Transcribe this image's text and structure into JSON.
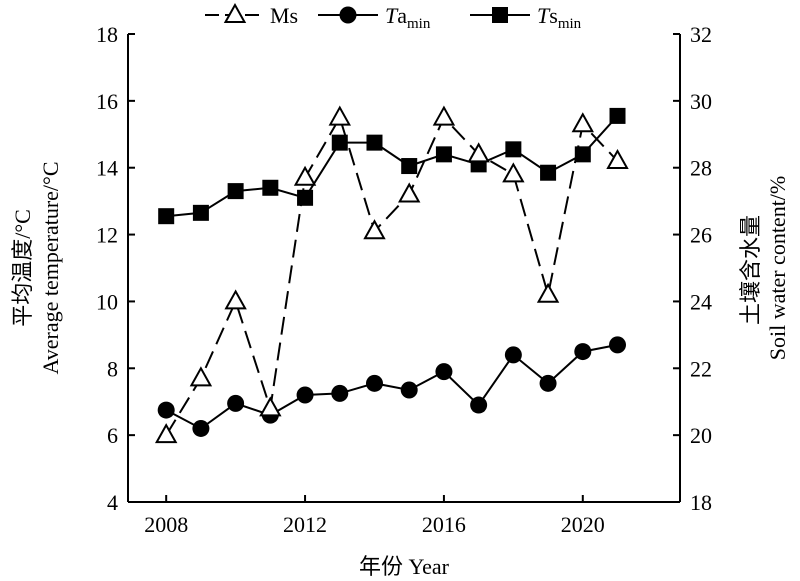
{
  "chart_data": {
    "type": "line",
    "x": [
      2008,
      2009,
      2010,
      2011,
      2012,
      2013,
      2014,
      2015,
      2016,
      2017,
      2018,
      2019,
      2020,
      2021
    ],
    "xlabel": "年份 Year",
    "ylabel_left_cn": "平均温度/°C",
    "ylabel_left_en": "Average temperature/°C",
    "ylabel_right_cn": "土壤含水量",
    "ylabel_right_en": "Soil water content/%",
    "xlim": [
      2006.9,
      2022.8
    ],
    "ylim_left": [
      4,
      18
    ],
    "ylim_right": [
      18,
      32
    ],
    "x_ticks": [
      2008,
      2012,
      2016,
      2020
    ],
    "y_ticks_left": [
      4,
      6,
      8,
      10,
      12,
      14,
      16,
      18
    ],
    "y_ticks_right": [
      18,
      20,
      22,
      24,
      26,
      28,
      30,
      32
    ],
    "grid": false,
    "legend_position": "top",
    "series": [
      {
        "name": "Ms",
        "axis": "right",
        "line_style": "dashed",
        "marker": "triangle-open",
        "values": [
          20.0,
          21.7,
          24.0,
          20.8,
          27.7,
          29.5,
          26.1,
          27.2,
          29.5,
          28.4,
          27.8,
          24.2,
          29.3,
          28.2
        ]
      },
      {
        "name": "Ta",
        "name_sub": "min",
        "axis": "left",
        "line_style": "solid",
        "marker": "circle-filled",
        "values": [
          6.75,
          6.2,
          6.95,
          6.6,
          7.2,
          7.25,
          7.55,
          7.35,
          7.9,
          6.9,
          8.4,
          7.55,
          8.5,
          8.7
        ]
      },
      {
        "name": "Ts",
        "name_sub": "min",
        "axis": "left",
        "line_style": "solid",
        "marker": "square-filled",
        "values": [
          12.55,
          12.65,
          13.3,
          13.4,
          13.1,
          14.75,
          14.75,
          14.05,
          14.4,
          14.1,
          14.55,
          13.85,
          14.4,
          15.55
        ]
      }
    ]
  }
}
